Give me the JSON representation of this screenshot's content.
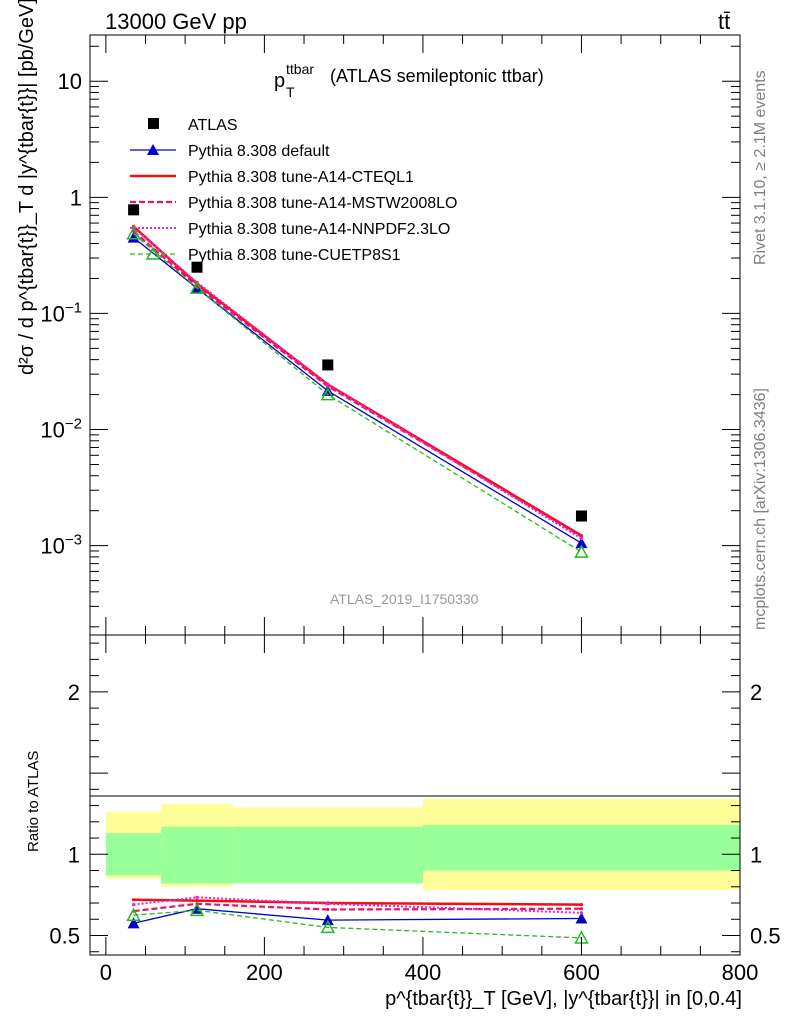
{
  "header": {
    "left": "13000 GeV pp",
    "right": "tt̄"
  },
  "side_labels": {
    "rivet": "Rivet 3.1.10, ≥ 2.1M events",
    "mcplots": "mcplots.cern.ch [arXiv:1306.3436]"
  },
  "main": {
    "title_p": "p",
    "title_sup": "ttbar",
    "title_sub": "T",
    "title_rest": "(ATLAS semileptonic ttbar)",
    "watermark": "ATLAS_2019_I1750330",
    "ylabel": "d²σ / d p^{tbar{t}}_T d |y^{tbar{t}}| [pb/GeV]"
  },
  "ratio": {
    "ylabel": "Ratio to ATLAS"
  },
  "xaxis": {
    "label": "p^{tbar{t}}_T [GeV], |y^{tbar{t}}| in [0,0.4]"
  },
  "colors": {
    "data": "#000000",
    "default": "#0000cc",
    "cteql1": "#ee1111",
    "mstw": "#ee1166",
    "nnpdf": "#ee22cc",
    "cuetp8s1": "#22bb22",
    "band_syst": "#ffff99",
    "band_stat": "#99ff99"
  },
  "chart_data": [
    {
      "type": "scatter",
      "name": "main-panel",
      "yscale": "log",
      "xlim": [
        -20,
        800
      ],
      "ylim": [
        0.00017,
        25
      ],
      "x_bins": [
        [
          0,
          70
        ],
        [
          70,
          160
        ],
        [
          160,
          400
        ],
        [
          400,
          800
        ]
      ],
      "x": [
        35,
        115,
        280,
        600
      ],
      "yticks": [
        0.001,
        0.01,
        0.1,
        1,
        10
      ],
      "ytick_labels": [
        "10^-3",
        "10^-2",
        "10^-1",
        "1",
        "10"
      ],
      "xticks": [
        0,
        200,
        400,
        600,
        800
      ],
      "xtick_labels": [
        "0",
        "200",
        "400",
        "600",
        "800"
      ],
      "series": [
        {
          "key": "data",
          "name": "ATLAS",
          "values": [
            0.78,
            0.25,
            0.036,
            0.0018
          ]
        },
        {
          "key": "default",
          "name": "Pythia 8.308 default",
          "values": [
            0.45,
            0.165,
            0.0215,
            0.00105
          ]
        },
        {
          "key": "cteql1",
          "name": "Pythia 8.308 tune-A14-CTEQL1",
          "values": [
            0.56,
            0.18,
            0.0245,
            0.00122
          ]
        },
        {
          "key": "mstw",
          "name": "Pythia 8.308 tune-A14-MSTW2008LO",
          "values": [
            0.51,
            0.172,
            0.0236,
            0.0012
          ]
        },
        {
          "key": "nnpdf",
          "name": "Pythia 8.308 tune-A14-NNPDF2.3LO",
          "values": [
            0.545,
            0.185,
            0.0245,
            0.00115
          ]
        },
        {
          "key": "cuetp8s1",
          "name": "Pythia 8.308 tune-CUETP8S1",
          "values": [
            0.485,
            0.165,
            0.02,
            0.00088
          ]
        }
      ]
    },
    {
      "type": "line",
      "name": "ratio-panel",
      "xlim": [
        -20,
        800
      ],
      "ylim": [
        0.38,
        2.35
      ],
      "x": [
        35,
        115,
        280,
        600
      ],
      "yticks": [
        0.5,
        1,
        2
      ],
      "ytick_labels": [
        "0.5",
        "1",
        "2"
      ],
      "bands": {
        "bins": [
          [
            0,
            70
          ],
          [
            70,
            160
          ],
          [
            160,
            400
          ],
          [
            400,
            800
          ]
        ],
        "stat": [
          [
            0.87,
            1.13
          ],
          [
            0.82,
            1.17
          ],
          [
            0.82,
            1.17
          ],
          [
            0.9,
            1.18
          ]
        ],
        "syst": [
          [
            0.85,
            1.26
          ],
          [
            0.8,
            1.31
          ],
          [
            0.82,
            1.29
          ],
          [
            0.78,
            1.34
          ]
        ]
      },
      "series": [
        {
          "key": "default",
          "name": "Pythia 8.308 default",
          "values": [
            0.575,
            0.665,
            0.595,
            0.605
          ]
        },
        {
          "key": "cteql1",
          "name": "Pythia 8.308 tune-A14-CTEQL1",
          "values": [
            0.72,
            0.715,
            0.7,
            0.69
          ]
        },
        {
          "key": "mstw",
          "name": "Pythia 8.308 tune-A14-MSTW2008LO",
          "values": [
            0.65,
            0.695,
            0.66,
            0.665
          ]
        },
        {
          "key": "nnpdf",
          "name": "Pythia 8.308 tune-A14-NNPDF2.3LO",
          "values": [
            0.69,
            0.735,
            0.695,
            0.64
          ]
        },
        {
          "key": "cuetp8s1",
          "name": "Pythia 8.308 tune-CUETP8S1",
          "values": [
            0.625,
            0.655,
            0.55,
            0.485
          ]
        }
      ]
    }
  ]
}
